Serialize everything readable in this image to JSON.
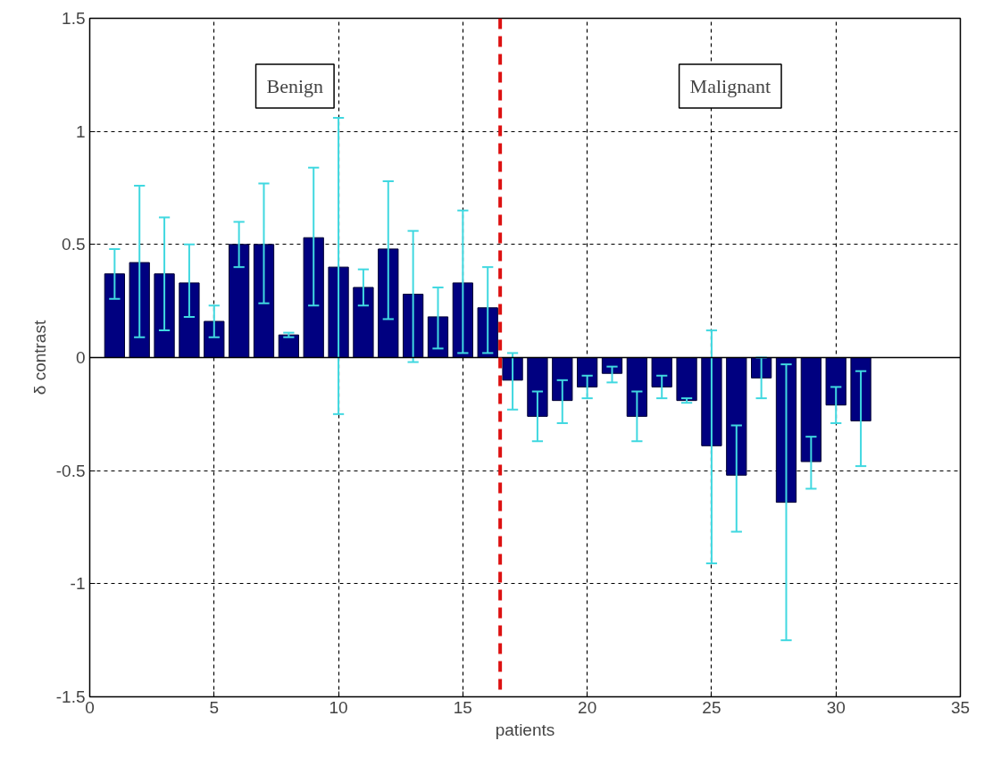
{
  "chart_data": {
    "type": "bar",
    "xlabel": "patients",
    "ylabel": "δ contrast",
    "x": [
      1,
      2,
      3,
      4,
      5,
      6,
      7,
      8,
      9,
      10,
      11,
      12,
      13,
      14,
      15,
      16,
      17,
      18,
      19,
      20,
      21,
      22,
      23,
      24,
      25,
      26,
      27,
      28,
      29,
      30,
      31
    ],
    "values": [
      0.37,
      0.42,
      0.37,
      0.33,
      0.16,
      0.5,
      0.5,
      0.1,
      0.53,
      0.4,
      0.31,
      0.48,
      0.28,
      0.18,
      0.33,
      0.22,
      -0.1,
      -0.26,
      -0.19,
      -0.13,
      -0.07,
      -0.26,
      -0.13,
      -0.19,
      -0.39,
      -0.52,
      -0.09,
      -0.64,
      -0.46,
      -0.21,
      -0.28
    ],
    "errors": [
      [
        0.26,
        0.48
      ],
      [
        0.09,
        0.76
      ],
      [
        0.12,
        0.62
      ],
      [
        0.18,
        0.5
      ],
      [
        0.09,
        0.23
      ],
      [
        0.4,
        0.6
      ],
      [
        0.24,
        0.77
      ],
      [
        0.09,
        0.11
      ],
      [
        0.23,
        0.84
      ],
      [
        -0.25,
        1.06
      ],
      [
        0.23,
        0.39
      ],
      [
        0.17,
        0.78
      ],
      [
        -0.02,
        0.56
      ],
      [
        0.04,
        0.31
      ],
      [
        0.02,
        0.65
      ],
      [
        0.02,
        0.4
      ],
      [
        -0.23,
        0.02
      ],
      [
        -0.37,
        -0.15
      ],
      [
        -0.29,
        -0.1
      ],
      [
        -0.18,
        -0.08
      ],
      [
        -0.11,
        -0.04
      ],
      [
        -0.37,
        -0.15
      ],
      [
        -0.18,
        -0.08
      ],
      [
        -0.2,
        -0.18
      ],
      [
        -0.91,
        0.12
      ],
      [
        -0.77,
        -0.3
      ],
      [
        -0.18,
        0.0
      ],
      [
        -1.25,
        -0.03
      ],
      [
        -0.58,
        -0.35
      ],
      [
        -0.29,
        -0.13
      ],
      [
        -0.48,
        -0.06
      ]
    ],
    "color": "#000080",
    "xlim": [
      0,
      35
    ],
    "xticks": [
      0,
      5,
      10,
      15,
      20,
      25,
      30,
      35
    ],
    "ylim": [
      -1.5,
      1.5
    ],
    "yticks": [
      -1.5,
      -1,
      -0.5,
      0,
      0.5,
      1,
      1.5
    ],
    "grid": true,
    "ref_lines": [
      {
        "axis": "x",
        "value": 16.5,
        "label": null,
        "color": "#dd1111",
        "line_style": "dashed"
      }
    ],
    "annotations": [
      "Benign",
      "Malignant"
    ]
  }
}
